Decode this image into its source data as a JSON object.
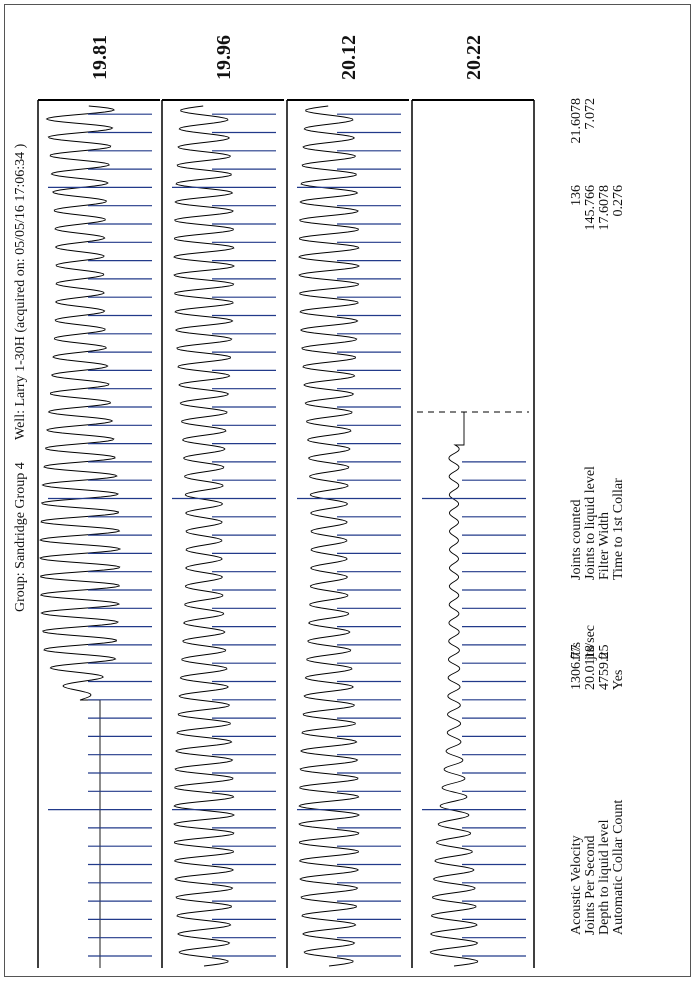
{
  "header": {
    "group": "Group: Sandridge Group 4",
    "well": "Well: Larry 1-30H (acquired on: 05/05/16 17:06:34 )"
  },
  "panels": [
    {
      "label": "19.81"
    },
    {
      "label": "19.96"
    },
    {
      "label": "20.12"
    },
    {
      "label": "20.22"
    }
  ],
  "stats": {
    "left": [
      {
        "label": "Acoustic Velocity",
        "value": "1306.77",
        "unit": "ft/s"
      },
      {
        "label": "Joints Per Second",
        "value": "20.0118",
        "unit": "jts/sec"
      },
      {
        "label": "Depth to liquid level",
        "value": "4759.25",
        "unit": "ft"
      },
      {
        "label": "Automatic Collar Count",
        "value": "Yes"
      }
    ],
    "right": [
      {
        "label": "Joints counted",
        "value": "136"
      },
      {
        "label": "Joints to liquid level",
        "value": "145.766"
      },
      {
        "label": "Filter Width",
        "value": "17.6078"
      },
      {
        "label": "Time to 1st Collar",
        "value": "0.276"
      }
    ],
    "extra": [
      "21.6078",
      "7.072"
    ]
  }
}
